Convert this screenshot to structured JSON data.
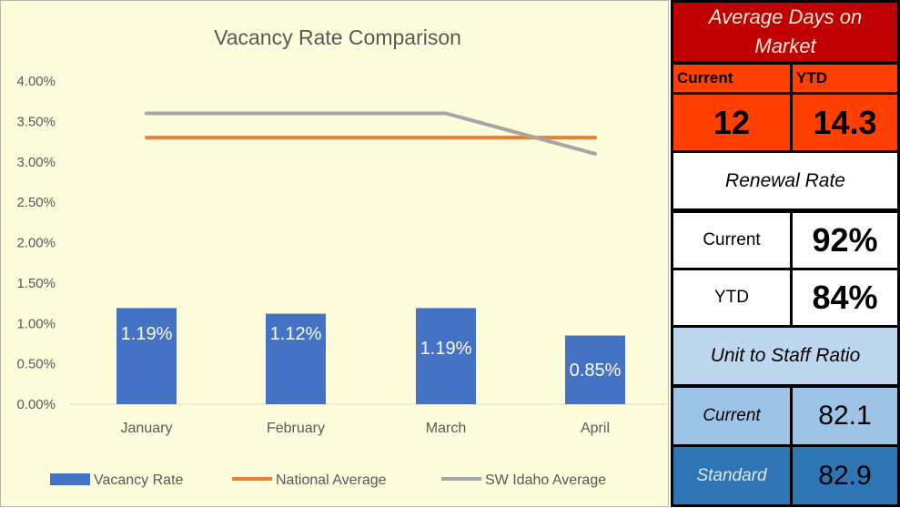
{
  "chart_data": {
    "type": "bar",
    "title": "Vacancy Rate Comparison",
    "categories": [
      "January",
      "February",
      "March",
      "April"
    ],
    "series": [
      {
        "name": "Vacancy Rate",
        "type": "bar",
        "color": "#4472c4",
        "values": [
          0.0119,
          0.0112,
          0.0119,
          0.0085
        ],
        "labels": [
          "1.19%",
          "1.12%",
          "1.19%",
          "0.85%"
        ]
      },
      {
        "name": "National Average",
        "type": "line",
        "color": "#ed7d31",
        "values": [
          0.033,
          0.033,
          0.033,
          0.033
        ]
      },
      {
        "name": "SW Idaho Average",
        "type": "line",
        "color": "#a5a5a5",
        "values": [
          0.036,
          0.036,
          0.036,
          0.031
        ]
      }
    ],
    "yticks": [
      "0.00%",
      "0.50%",
      "1.00%",
      "1.50%",
      "2.00%",
      "2.50%",
      "3.00%",
      "3.50%",
      "4.00%"
    ],
    "ylim": [
      0,
      0.04
    ],
    "grid": false,
    "legend_position": "bottom"
  },
  "kpis": {
    "days_on_market": {
      "title": "Average Days on Market",
      "current_label": "Current",
      "ytd_label": "YTD",
      "current_value": "12",
      "ytd_value": "14.3"
    },
    "renewal": {
      "title": "Renewal Rate",
      "current_label": "Current",
      "current_value": "92%",
      "ytd_label": "YTD",
      "ytd_value": "84%"
    },
    "staff_ratio": {
      "title": "Unit to Staff Ratio",
      "current_label": "Current",
      "current_value": "82.1",
      "standard_label": "Standard",
      "standard_value": "82.9"
    }
  },
  "colors": {
    "dark_red": "#c00000",
    "orange_red": "#ff4000",
    "light_blue": "#bdd7ee",
    "mid_blue": "#9dc3e6",
    "steel_blue": "#2e75b6"
  }
}
